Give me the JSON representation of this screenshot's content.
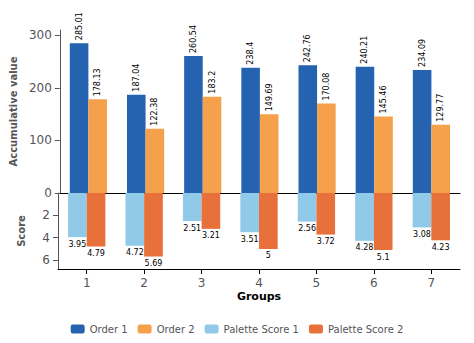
{
  "chart_data": [
    {
      "type": "bar",
      "categories": [
        "1",
        "2",
        "3",
        "4",
        "5",
        "6",
        "7"
      ],
      "ylabel": "Accumulative value",
      "ylim": [
        0,
        310
      ],
      "yticks": [
        0,
        100,
        200,
        300
      ],
      "grid": false,
      "data_labels": true,
      "tick_labels": "y",
      "legend": "bottom",
      "series": [
        {
          "name": "Order 1",
          "color": "#2563b0",
          "values": [
            285.01,
            187.04,
            260.54,
            238.4,
            242.76,
            240.21,
            234.09
          ]
        },
        {
          "name": "Order 2",
          "color": "#f5a04a",
          "values": [
            178.13,
            122.38,
            183.2,
            149.69,
            170.08,
            145.46,
            129.77
          ]
        }
      ]
    },
    {
      "type": "bar",
      "categories": [
        "1",
        "2",
        "3",
        "4",
        "5",
        "6",
        "7"
      ],
      "xlabel": "Groups",
      "ylabel": "Score",
      "ylim": [
        6.8,
        0
      ],
      "yticks": [
        2,
        4,
        6
      ],
      "grid": false,
      "data_labels": true,
      "legend": "bottom",
      "series": [
        {
          "name": "Palette Score 1",
          "color": "#91c9e8",
          "values": [
            3.95,
            4.72,
            2.51,
            3.51,
            2.56,
            4.28,
            3.08
          ]
        },
        {
          "name": "Palette Score 2",
          "color": "#e8703a",
          "values": [
            4.79,
            5.69,
            3.21,
            5,
            3.72,
            5.1,
            4.23
          ]
        }
      ]
    }
  ]
}
